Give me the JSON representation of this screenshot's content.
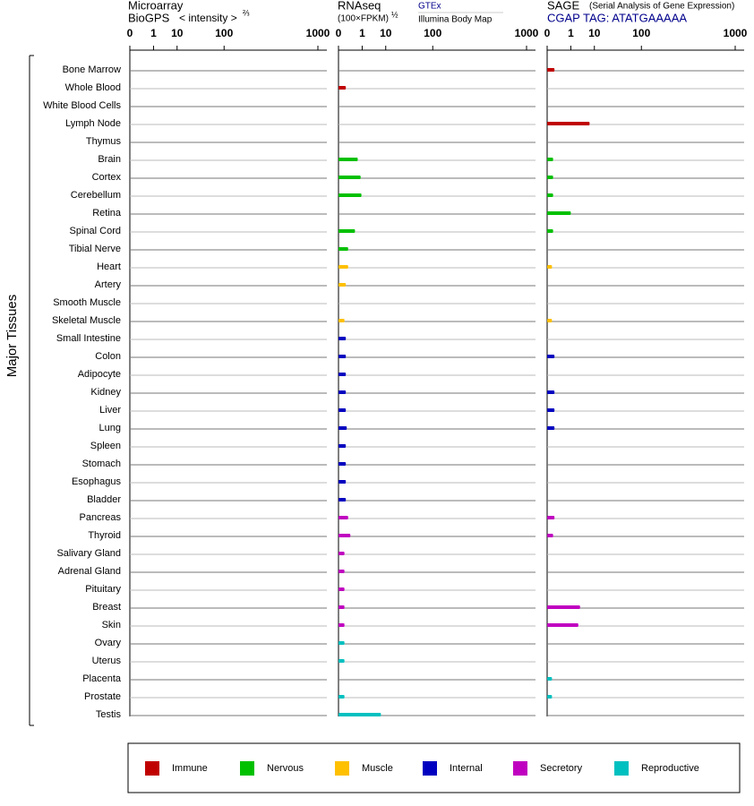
{
  "chart_data": [
    {
      "type": "bar",
      "title": "Microarray",
      "subtitle": "BioGPS",
      "xlabel": "< intensity >",
      "exponent_label": "⅔",
      "ylabel": "Major Tissues",
      "categories": [
        "Bone Marrow",
        "Whole Blood",
        "White Blood Cells",
        "Lymph Node",
        "Thymus",
        "Brain",
        "Cortex",
        "Cerebellum",
        "Retina",
        "Spinal Cord",
        "Tibial Nerve",
        "Heart",
        "Artery",
        "Smooth Muscle",
        "Skeletal Muscle",
        "Small Intestine",
        "Colon",
        "Adipocyte",
        "Kidney",
        "Liver",
        "Lung",
        "Spleen",
        "Stomach",
        "Esophagus",
        "Bladder",
        "Pancreas",
        "Thyroid",
        "Salivary Gland",
        "Adrenal Gland",
        "Pituitary",
        "Breast",
        "Skin",
        "Ovary",
        "Uterus",
        "Placenta",
        "Prostate",
        "Testis"
      ],
      "colors": [
        "#c00000",
        "#c00000",
        "#c00000",
        "#c00000",
        "#c00000",
        "#00c000",
        "#00c000",
        "#00c000",
        "#00c000",
        "#00c000",
        "#00c000",
        "#ffc000",
        "#ffc000",
        "#ffc000",
        "#ffc000",
        "#0000c0",
        "#0000c0",
        "#0000c0",
        "#0000c0",
        "#0000c0",
        "#0000c0",
        "#0000c0",
        "#0000c0",
        "#0000c0",
        "#0000c0",
        "#c000c0",
        "#c000c0",
        "#c000c0",
        "#c000c0",
        "#c000c0",
        "#c000c0",
        "#c000c0",
        "#00c0c0",
        "#00c0c0",
        "#00c0c0",
        "#00c0c0",
        "#00c0c0"
      ],
      "values": [
        0,
        0,
        0,
        0,
        0,
        0,
        0,
        0,
        0,
        0,
        0,
        0,
        0,
        0,
        0,
        0,
        0,
        0,
        0,
        0,
        0,
        0,
        0,
        0,
        0,
        0,
        0,
        0,
        0,
        0,
        0,
        0,
        0,
        0,
        0,
        0,
        0
      ],
      "xlim": [
        0,
        1000
      ],
      "xticks": [
        0,
        1,
        10,
        100,
        1000
      ]
    },
    {
      "type": "bar",
      "title": "RNAseq",
      "subtitle": "(100×FPKM)",
      "exponent_label": "½",
      "sources": [
        "GTEx",
        "Illumina Body Map"
      ],
      "values": [
        0,
        0.02,
        0,
        0,
        0,
        0.5,
        0.8,
        0.9,
        0,
        0.3,
        0.05,
        0.05,
        0.02,
        0,
        0.01,
        0.02,
        0.02,
        0.02,
        0.02,
        0.02,
        0.03,
        0.02,
        0.02,
        0.02,
        0.02,
        0.05,
        0.1,
        0.01,
        0.01,
        0.01,
        0.01,
        0.01,
        0.01,
        0.01,
        0,
        0.01,
        7
      ],
      "xlim": [
        0,
        1000
      ],
      "xticks": [
        0,
        1,
        10,
        100,
        1000
      ]
    },
    {
      "type": "bar",
      "title": "SAGE",
      "subtitle": "(Serial Analysis of Gene Expression)",
      "tag": "CGAP TAG: ATATGAAAAA",
      "values": [
        0.02,
        0,
        0,
        7,
        0,
        0.01,
        0.01,
        0.01,
        1,
        0.01,
        0,
        0.005,
        0,
        0,
        0.005,
        0,
        0.02,
        0,
        0.02,
        0.02,
        0.02,
        0,
        0,
        0,
        0,
        0.02,
        0.01,
        0,
        0,
        0,
        3,
        2.5,
        0,
        0,
        0.005,
        0.005,
        0
      ],
      "xlim": [
        0,
        1000
      ],
      "xticks": [
        0,
        1,
        10,
        100,
        1000
      ]
    }
  ],
  "legend": [
    {
      "name": "Immune",
      "color": "#c00000"
    },
    {
      "name": "Nervous",
      "color": "#00c000"
    },
    {
      "name": "Muscle",
      "color": "#ffc000"
    },
    {
      "name": "Internal",
      "color": "#0000c0"
    },
    {
      "name": "Secretory",
      "color": "#c000c0"
    },
    {
      "name": "Reproductive",
      "color": "#00c0c0"
    }
  ]
}
